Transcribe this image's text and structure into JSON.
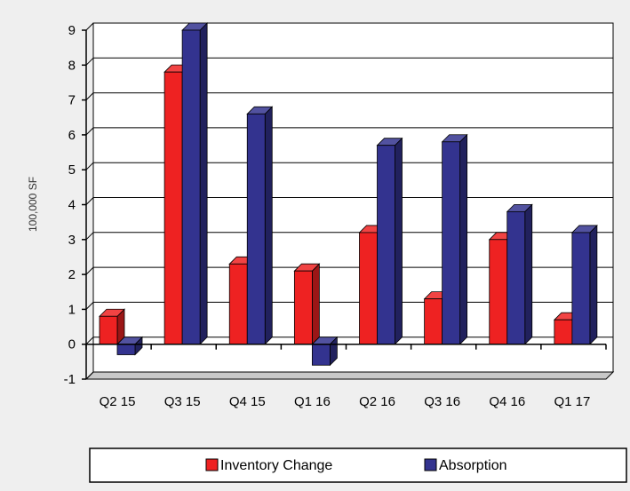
{
  "chart_data": {
    "type": "bar",
    "title": "",
    "xlabel": "",
    "ylabel": "100,000 SF",
    "categories": [
      "Q2 15",
      "Q3 15",
      "Q4 15",
      "Q1 16",
      "Q2 16",
      "Q3 16",
      "Q4 16",
      "Q1 17"
    ],
    "series": [
      {
        "name": "Inventory Change",
        "color": "#ee2222",
        "values": [
          0.8,
          7.8,
          2.3,
          2.1,
          3.2,
          1.3,
          3.0,
          0.7
        ]
      },
      {
        "name": "Absorption",
        "color": "#33338f",
        "values": [
          -0.3,
          9.0,
          6.6,
          -0.6,
          5.7,
          5.8,
          3.8,
          3.2
        ]
      }
    ],
    "ylim": [
      -1,
      9
    ],
    "yticks": [
      -1,
      0,
      1,
      2,
      3,
      4,
      5,
      6,
      7,
      8,
      9
    ],
    "grid": true,
    "legend_position": "bottom",
    "style": "3d"
  }
}
